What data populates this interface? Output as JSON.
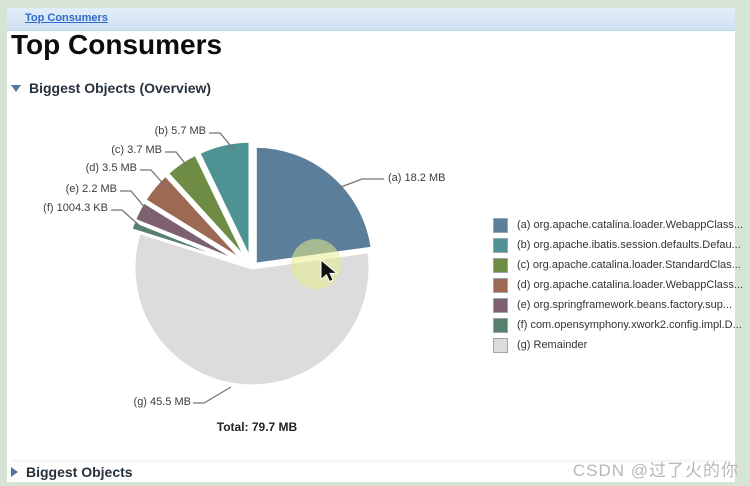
{
  "page": {
    "breadcrumb_link": "Top Consumers",
    "title": "Top Consumers",
    "watermark": "CSDN @过了火的你"
  },
  "sections": {
    "overview": {
      "label": "Biggest Objects (Overview)",
      "state": "expanded"
    },
    "bottom": {
      "label": "Biggest Objects",
      "state": "collapsed"
    }
  },
  "chart_data": {
    "type": "pie",
    "title": "Biggest Objects (Overview)",
    "total_label": "Total: 79.7 MB",
    "total_mb": 79.7,
    "unit": "MB",
    "legend_position": "right",
    "slices": [
      {
        "key": "a",
        "label": "(a) 18.2 MB",
        "value_mb": 18.2,
        "legend": "(a) org.apache.catalina.loader.WebappClass...",
        "color": "#5b7e9b"
      },
      {
        "key": "b",
        "label": "(b) 5.7 MB",
        "value_mb": 5.7,
        "legend": "(b) org.apache.ibatis.session.defaults.Defau...",
        "color": "#4f9293"
      },
      {
        "key": "c",
        "label": "(c) 3.7 MB",
        "value_mb": 3.7,
        "legend": "(c) org.apache.catalina.loader.StandardClas...",
        "color": "#6e8c44"
      },
      {
        "key": "d",
        "label": "(d) 3.5 MB",
        "value_mb": 3.5,
        "legend": "(d) org.apache.catalina.loader.WebappClass...",
        "color": "#9c6a52"
      },
      {
        "key": "e",
        "label": "(e) 2.2 MB",
        "value_mb": 2.2,
        "legend": "(e) org.springframework.beans.factory.sup...",
        "color": "#7e6170"
      },
      {
        "key": "f",
        "label": "(f) 1004.3 KB",
        "value_mb": 0.981,
        "legend": "(f) com.opensymphony.xwork2.config.impl.D...",
        "color": "#55806c"
      },
      {
        "key": "g",
        "label": "(g) 45.5 MB",
        "value_mb": 45.5,
        "legend": "(g) Remainder",
        "color": "#dcdcdc"
      }
    ],
    "draw_order_clockwise_from_top": [
      "a",
      "g",
      "f",
      "e",
      "d",
      "c",
      "b"
    ]
  },
  "cursor": {
    "highlight_color": "#e6ec8a"
  }
}
